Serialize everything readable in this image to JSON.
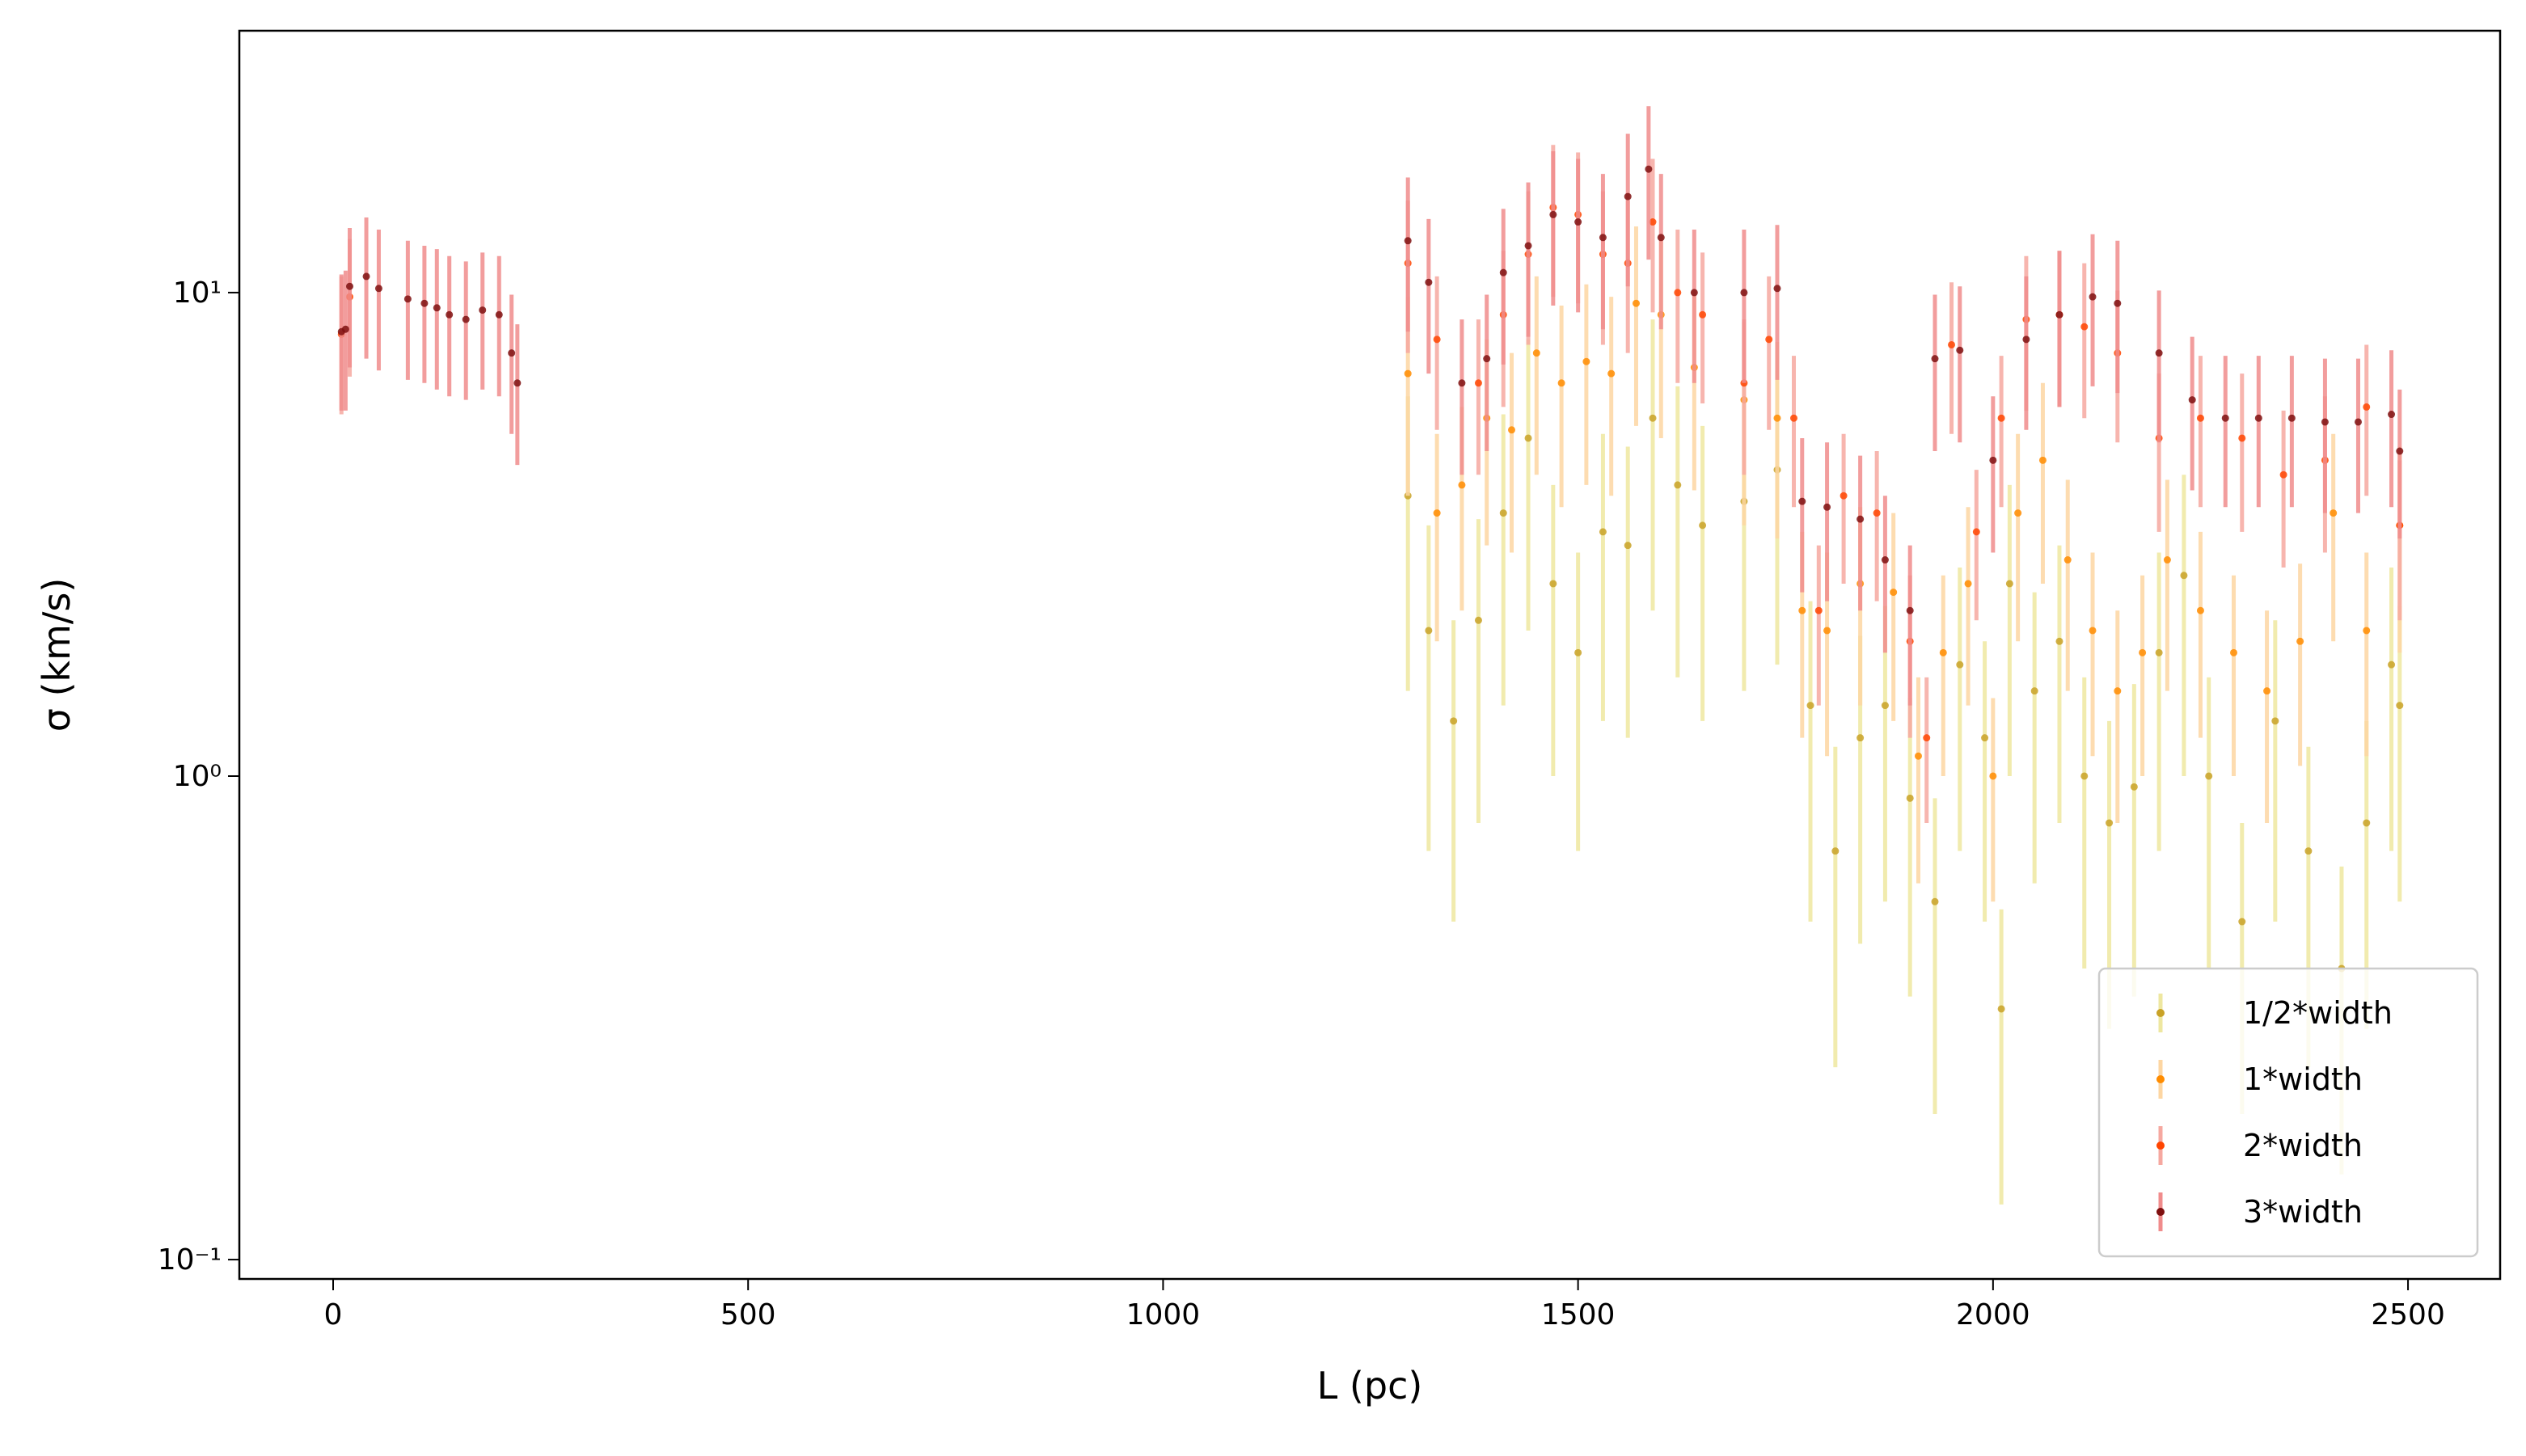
{
  "chart_data": {
    "type": "scatter",
    "xlabel": "L (pc)",
    "ylabel": "σ (km/s)",
    "xlim": [
      -113,
      2611
    ],
    "xticks": [
      0,
      500,
      1000,
      1500,
      2000,
      2500
    ],
    "ylim": [
      0.0912,
      34.8
    ],
    "log_y": true,
    "yticks": [
      {
        "value": 0.1,
        "label": "10⁻¹"
      },
      {
        "value": 1,
        "label": "10⁰"
      },
      {
        "value": 10,
        "label": "10¹"
      }
    ],
    "legend": "lower right",
    "series": [
      {
        "name": "1/2*width",
        "color": "#c9a227",
        "error_color": "#eee7a0",
        "x": [
          1295,
          1320,
          1350,
          1380,
          1410,
          1440,
          1470,
          1500,
          1530,
          1560,
          1590,
          1620,
          1650,
          1700,
          1740,
          1780,
          1810,
          1840,
          1870,
          1900,
          1930,
          1960,
          1990,
          2010,
          2020,
          2050,
          2080,
          2110,
          2140,
          2170,
          2200,
          2230,
          2260,
          2300,
          2340,
          2380,
          2420,
          2450,
          2480,
          2490
        ],
        "values": [
          3.8,
          2.0,
          1.3,
          2.1,
          3.5,
          5.0,
          2.5,
          1.8,
          3.2,
          3.0,
          5.5,
          4.0,
          3.3,
          3.7,
          4.3,
          1.4,
          0.7,
          1.2,
          1.4,
          0.9,
          0.55,
          1.7,
          1.2,
          0.33,
          2.5,
          1.5,
          1.9,
          1.0,
          0.8,
          0.95,
          1.8,
          2.6,
          1.0,
          0.5,
          1.3,
          0.7,
          0.4,
          0.8,
          1.7,
          1.4
        ],
        "errors": [
          2.3,
          1.3,
          0.8,
          1.3,
          2.1,
          3.0,
          1.5,
          1.1,
          1.9,
          1.8,
          3.3,
          2.4,
          2.0,
          2.2,
          2.6,
          0.9,
          0.45,
          0.75,
          0.85,
          0.55,
          0.35,
          1.0,
          0.7,
          0.2,
          1.5,
          0.9,
          1.1,
          0.6,
          0.5,
          0.6,
          1.1,
          1.6,
          0.6,
          0.3,
          0.8,
          0.45,
          0.25,
          0.5,
          1.0,
          0.85
        ]
      },
      {
        "name": "1*width",
        "color": "#ff8c00",
        "error_color": "#fdd6a2",
        "x": [
          1295,
          1330,
          1360,
          1390,
          1420,
          1450,
          1480,
          1510,
          1540,
          1570,
          1600,
          1640,
          1700,
          1740,
          1770,
          1800,
          1840,
          1880,
          1910,
          1940,
          1970,
          2000,
          2030,
          2060,
          2090,
          2120,
          2150,
          2180,
          2210,
          2250,
          2290,
          2330,
          2370,
          2410,
          2450,
          2490
        ],
        "values": [
          6.8,
          3.5,
          4.0,
          5.5,
          5.2,
          7.5,
          6.5,
          7.2,
          6.8,
          9.5,
          9.0,
          7.0,
          6.0,
          5.5,
          2.2,
          2.0,
          2.5,
          2.4,
          1.1,
          1.8,
          2.5,
          1.0,
          3.5,
          4.5,
          2.8,
          2.0,
          1.5,
          1.8,
          2.8,
          2.2,
          1.8,
          1.5,
          1.9,
          3.5,
          2.0,
          3.3
        ],
        "errors": [
          3.0,
          1.6,
          1.8,
          2.5,
          2.3,
          3.3,
          2.9,
          3.2,
          3.0,
          4.2,
          4.0,
          3.1,
          2.7,
          2.4,
          1.0,
          0.9,
          1.1,
          1.1,
          0.5,
          0.8,
          1.1,
          0.45,
          1.6,
          2.0,
          1.3,
          0.9,
          0.7,
          0.8,
          1.3,
          1.0,
          0.8,
          0.7,
          0.85,
          1.6,
          0.9,
          1.5
        ]
      },
      {
        "name": "2*width",
        "color": "#ff4500",
        "error_color": "#f6a8a0",
        "x": [
          10,
          20,
          1295,
          1330,
          1380,
          1410,
          1440,
          1470,
          1500,
          1530,
          1560,
          1590,
          1620,
          1650,
          1700,
          1730,
          1760,
          1790,
          1820,
          1860,
          1900,
          1920,
          1950,
          1980,
          2010,
          2040,
          2080,
          2110,
          2150,
          2200,
          2250,
          2300,
          2350,
          2400,
          2450,
          2490
        ],
        "values": [
          8.2,
          9.8,
          11.5,
          8.0,
          6.5,
          9.0,
          12.0,
          15.0,
          14.5,
          12.0,
          11.5,
          14.0,
          10.0,
          9.0,
          6.5,
          8.0,
          5.5,
          2.2,
          3.8,
          3.5,
          1.9,
          1.2,
          7.8,
          3.2,
          5.5,
          8.8,
          9.0,
          8.5,
          7.5,
          5.0,
          5.5,
          5.0,
          4.2,
          4.5,
          5.8,
          3.3
        ],
        "errors": [
          2.6,
          3.1,
          4.0,
          2.8,
          2.3,
          3.2,
          4.2,
          5.2,
          5.0,
          4.2,
          4.0,
          4.9,
          3.5,
          3.1,
          2.3,
          2.8,
          1.9,
          0.8,
          1.3,
          1.2,
          0.7,
          0.4,
          2.7,
          1.1,
          1.9,
          3.1,
          3.2,
          3.0,
          2.6,
          1.8,
          1.9,
          1.8,
          1.5,
          1.6,
          2.0,
          1.2
        ]
      },
      {
        "name": "3*width",
        "color": "#7f1010",
        "error_color": "#f08c8c",
        "x": [
          10,
          15,
          20,
          40,
          55,
          90,
          110,
          125,
          140,
          160,
          180,
          200,
          215,
          222,
          1295,
          1320,
          1360,
          1390,
          1410,
          1440,
          1470,
          1500,
          1530,
          1560,
          1585,
          1600,
          1640,
          1700,
          1740,
          1770,
          1800,
          1840,
          1870,
          1900,
          1930,
          1960,
          2000,
          2040,
          2080,
          2120,
          2150,
          2200,
          2240,
          2280,
          2320,
          2360,
          2400,
          2440,
          2480,
          2490
        ],
        "values": [
          8.3,
          8.4,
          10.3,
          10.8,
          10.2,
          9.7,
          9.5,
          9.3,
          9.0,
          8.8,
          9.2,
          9.0,
          7.5,
          6.5,
          12.8,
          10.5,
          6.5,
          7.3,
          11.0,
          12.5,
          14.5,
          14.0,
          13.0,
          15.8,
          18.0,
          13.0,
          10.0,
          10.0,
          10.2,
          3.7,
          3.6,
          3.4,
          2.8,
          2.2,
          7.3,
          7.6,
          4.5,
          8.0,
          9.0,
          9.8,
          9.5,
          7.5,
          6.0,
          5.5,
          5.5,
          5.5,
          5.4,
          5.4,
          5.6,
          4.7
        ],
        "errors": [
          2.6,
          2.7,
          3.3,
          3.5,
          3.3,
          3.1,
          3.0,
          3.0,
          2.9,
          2.8,
          2.9,
          2.9,
          2.4,
          2.1,
          4.5,
          3.7,
          2.3,
          2.6,
          3.9,
          4.4,
          5.1,
          4.9,
          4.6,
          5.5,
          6.3,
          4.6,
          3.5,
          3.5,
          3.6,
          1.3,
          1.3,
          1.2,
          1.0,
          0.8,
          2.6,
          2.7,
          1.6,
          2.8,
          3.2,
          3.4,
          3.3,
          2.6,
          2.1,
          1.9,
          1.9,
          1.9,
          1.9,
          1.9,
          2.0,
          1.6
        ]
      }
    ]
  }
}
